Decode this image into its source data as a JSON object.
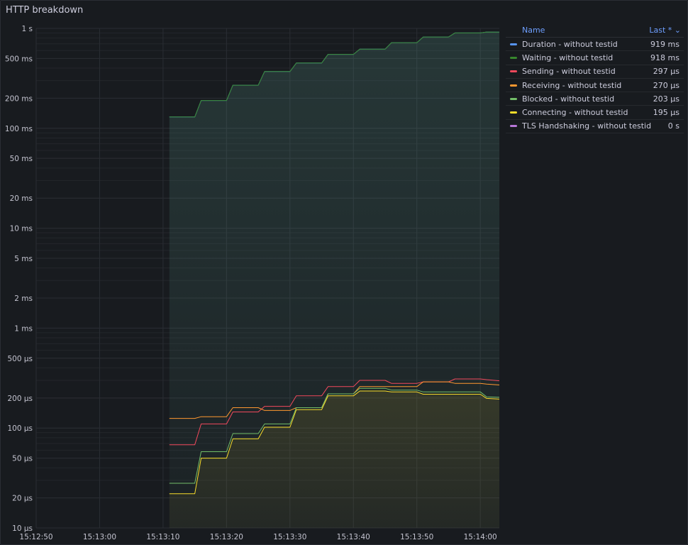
{
  "panel": {
    "title": "HTTP breakdown"
  },
  "legend": {
    "name_header": "Name",
    "last_header": "Last * ⌄",
    "items": [
      {
        "name": "Duration - without testid",
        "value": "919 ms",
        "color": "#5794f2"
      },
      {
        "name": "Waiting - without testid",
        "value": "918 ms",
        "color": "#37872d"
      },
      {
        "name": "Sending - without testid",
        "value": "297 µs",
        "color": "#f2495c"
      },
      {
        "name": "Receiving - without testid",
        "value": "270 µs",
        "color": "#ff9830"
      },
      {
        "name": "Blocked - without testid",
        "value": "203 µs",
        "color": "#73bf69"
      },
      {
        "name": "Connecting - without testid",
        "value": "195 µs",
        "color": "#fade2a"
      },
      {
        "name": "TLS Handshaking - without testid",
        "value": "0 s",
        "color": "#b877d9"
      }
    ]
  },
  "chart_data": {
    "type": "line",
    "yscale": "log",
    "unit": "seconds",
    "ylim": [
      1e-05,
      1
    ],
    "yticks": [
      {
        "v": 1,
        "label": "1 s"
      },
      {
        "v": 0.5,
        "label": "500 ms"
      },
      {
        "v": 0.2,
        "label": "200 ms"
      },
      {
        "v": 0.1,
        "label": "100 ms"
      },
      {
        "v": 0.05,
        "label": "50 ms"
      },
      {
        "v": 0.02,
        "label": "20 ms"
      },
      {
        "v": 0.01,
        "label": "10 ms"
      },
      {
        "v": 0.005,
        "label": "5 ms"
      },
      {
        "v": 0.002,
        "label": "2 ms"
      },
      {
        "v": 0.001,
        "label": "1 ms"
      },
      {
        "v": 0.0005,
        "label": "500 µs"
      },
      {
        "v": 0.0002,
        "label": "200 µs"
      },
      {
        "v": 0.0001,
        "label": "100 µs"
      },
      {
        "v": 5e-05,
        "label": "50 µs"
      },
      {
        "v": 2e-05,
        "label": "20 µs"
      },
      {
        "v": 1e-05,
        "label": "10 µs"
      }
    ],
    "xlim": [
      0,
      73
    ],
    "xticks": [
      {
        "v": 0,
        "label": "15:12:50"
      },
      {
        "v": 10,
        "label": "15:13:00"
      },
      {
        "v": 20,
        "label": "15:13:10"
      },
      {
        "v": 30,
        "label": "15:13:20"
      },
      {
        "v": 40,
        "label": "15:13:30"
      },
      {
        "v": 50,
        "label": "15:13:40"
      },
      {
        "v": 60,
        "label": "15:13:50"
      },
      {
        "v": 70,
        "label": "15:14:00"
      }
    ],
    "x": [
      21,
      25,
      26,
      30,
      31,
      35,
      36,
      40,
      41,
      45,
      46,
      50,
      51,
      55,
      56,
      60,
      61,
      65,
      66,
      70,
      71,
      73
    ],
    "series": [
      {
        "name": "Duration - without testid",
        "color": "#5794f2",
        "fill": true,
        "values": [
          0.13,
          0.13,
          0.19,
          0.19,
          0.27,
          0.27,
          0.37,
          0.37,
          0.45,
          0.45,
          0.55,
          0.55,
          0.62,
          0.62,
          0.72,
          0.72,
          0.82,
          0.82,
          0.9,
          0.9,
          0.92,
          0.919
        ]
      },
      {
        "name": "Waiting - without testid",
        "color": "#37872d",
        "fill": false,
        "values": [
          0.13,
          0.13,
          0.19,
          0.19,
          0.27,
          0.27,
          0.37,
          0.37,
          0.45,
          0.45,
          0.55,
          0.55,
          0.62,
          0.62,
          0.72,
          0.72,
          0.82,
          0.82,
          0.9,
          0.9,
          0.92,
          0.918
        ]
      },
      {
        "name": "Sending - without testid",
        "color": "#f2495c",
        "fill": false,
        "values": [
          6.8e-05,
          6.8e-05,
          0.00011,
          0.00011,
          0.000145,
          0.000145,
          0.000165,
          0.000165,
          0.00021,
          0.00021,
          0.00026,
          0.00026,
          0.0003,
          0.0003,
          0.00028,
          0.00028,
          0.00029,
          0.00029,
          0.00031,
          0.00031,
          0.000305,
          0.000297
        ]
      },
      {
        "name": "Receiving - without testid",
        "color": "#ff9830",
        "fill": false,
        "values": [
          0.000125,
          0.000125,
          0.00013,
          0.00013,
          0.00016,
          0.00016,
          0.00015,
          0.00015,
          0.00016,
          0.00016,
          0.00022,
          0.00022,
          0.00026,
          0.00026,
          0.00026,
          0.00026,
          0.00029,
          0.00029,
          0.00028,
          0.00028,
          0.000275,
          0.00027
        ]
      },
      {
        "name": "Blocked - without testid",
        "color": "#73bf69",
        "fill": false,
        "values": [
          2.8e-05,
          2.8e-05,
          5.8e-05,
          5.8e-05,
          8.8e-05,
          8.8e-05,
          0.00011,
          0.00011,
          0.00016,
          0.00016,
          0.00022,
          0.00022,
          0.00025,
          0.00025,
          0.00024,
          0.00024,
          0.00023,
          0.00023,
          0.00023,
          0.00023,
          0.000205,
          0.000203
        ]
      },
      {
        "name": "Connecting - without testid",
        "color": "#fade2a",
        "fill": true,
        "values": [
          2.2e-05,
          2.2e-05,
          5e-05,
          5e-05,
          7.8e-05,
          7.8e-05,
          0.000102,
          0.000102,
          0.000153,
          0.000153,
          0.00021,
          0.00021,
          0.000235,
          0.000235,
          0.00023,
          0.00023,
          0.000218,
          0.000218,
          0.000218,
          0.000218,
          0.000198,
          0.000195
        ]
      }
    ]
  }
}
